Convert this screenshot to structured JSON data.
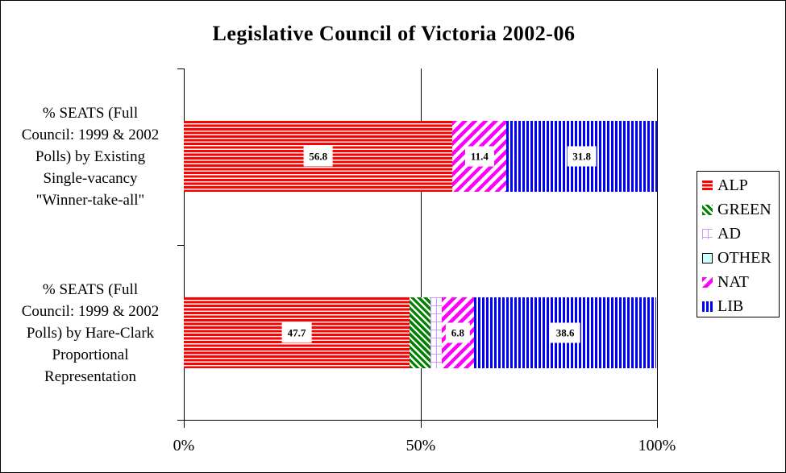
{
  "title": "Legislative Council of Victoria 2002-06",
  "chart_data": {
    "type": "bar",
    "orientation": "horizontal",
    "stacked": true,
    "title": "Legislative Council of Victoria 2002-06",
    "categories": [
      "% SEATS (Full Council: 1999 & 2002 Polls) by Existing Single-vacancy \"Winner-take-all\"",
      "% SEATS (Full Council: 1999 & 2002 Polls) by Hare-Clark Proportional Representation"
    ],
    "category_label_lines": [
      [
        "% SEATS (Full",
        "Council: 1999 & 2002",
        "Polls) by Existing",
        "Single-vacancy",
        "\"Winner-take-all\""
      ],
      [
        "% SEATS (Full",
        "Council: 1999 & 2002",
        "Polls) by Hare-Clark",
        "Proportional",
        "Representation"
      ]
    ],
    "series": [
      {
        "key": "alp",
        "name": "ALP",
        "color": "#FF0000",
        "pattern": "red-horizontal-stripes",
        "values": [
          56.8,
          47.7
        ],
        "data_labels": [
          "56.8",
          "47.7"
        ]
      },
      {
        "key": "green",
        "name": "GREEN",
        "color": "#008000",
        "pattern": "green-diagonal-down-stripes",
        "values": [
          0,
          4.5
        ],
        "data_labels": [
          null,
          null
        ]
      },
      {
        "key": "ad",
        "name": "AD",
        "color": "#CC99FF",
        "pattern": "lavender-grid",
        "values": [
          0,
          2.3
        ],
        "data_labels": [
          null,
          null
        ]
      },
      {
        "key": "other",
        "name": "OTHER",
        "color": "#CCFFFF",
        "pattern": "solid-pale-cyan",
        "values": [
          0,
          0
        ],
        "data_labels": [
          null,
          null
        ]
      },
      {
        "key": "nat",
        "name": "NAT",
        "color": "#FF00FF",
        "pattern": "magenta-diagonal-up-stripes",
        "values": [
          11.4,
          6.8
        ],
        "data_labels": [
          "11.4",
          "6.8"
        ]
      },
      {
        "key": "lib",
        "name": "LIB",
        "color": "#0000FF",
        "pattern": "blue-vertical-stripes",
        "values": [
          31.8,
          38.6
        ],
        "data_labels": [
          "31.8",
          "38.6"
        ]
      }
    ],
    "x_axis": {
      "range": [
        0,
        100
      ],
      "ticks": [
        "0%",
        "50%",
        "100%"
      ],
      "gridlines_at": [
        50,
        100
      ],
      "grid": true
    },
    "legend": {
      "position": "right",
      "items": [
        "ALP",
        "GREEN",
        "AD",
        "OTHER",
        "NAT",
        "LIB"
      ]
    }
  }
}
